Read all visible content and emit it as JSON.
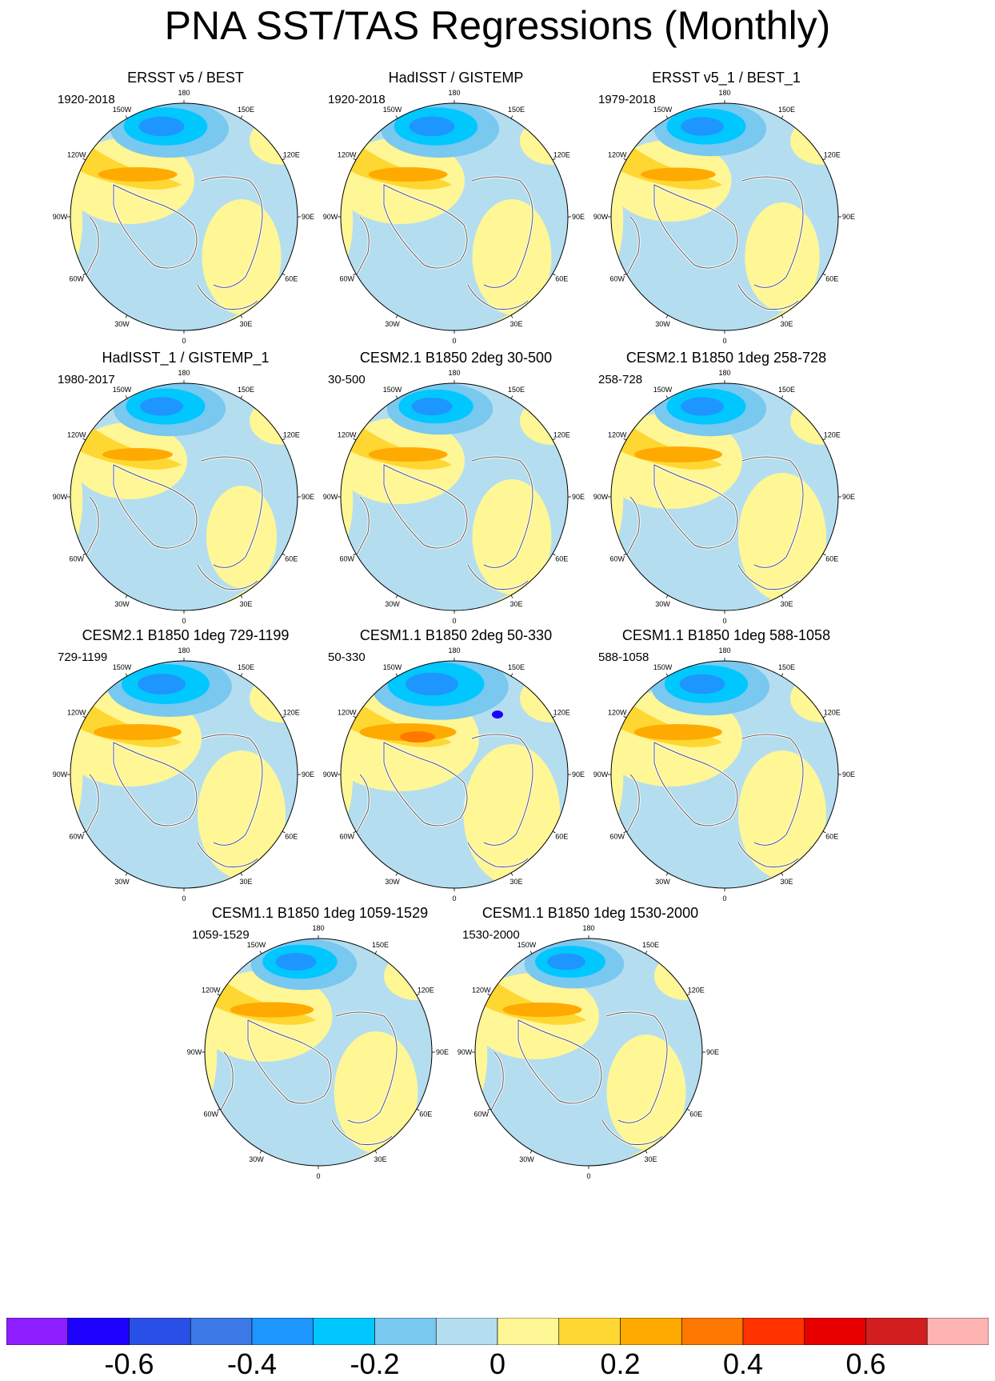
{
  "title": "PNA SST/TAS Regressions (Monthly)",
  "colors": {
    "coastline": "#555555",
    "ice_edge": "#ffffff"
  },
  "chart_data": {
    "type": "heatmap",
    "projection": "polar stereographic (Northern Hemisphere)",
    "longitude_labels": [
      "180",
      "150E",
      "120E",
      "90E",
      "60E",
      "30E",
      "0",
      "30W",
      "60W",
      "90W",
      "120W",
      "150W"
    ],
    "panels": [
      {
        "title": "ERSST v5 / BEST",
        "period": "1920-2018",
        "pattern": {
          "neg": 0.95,
          "pos": 0.9,
          "deep": false,
          "red": false
        }
      },
      {
        "title": "HadISST / GISTEMP",
        "period": "1920-2018",
        "pattern": {
          "neg": 0.95,
          "pos": 0.9,
          "deep": false,
          "red": false
        }
      },
      {
        "title": "ERSST v5_1 / BEST_1",
        "period": "1979-2018",
        "pattern": {
          "neg": 0.9,
          "pos": 0.85,
          "deep": false,
          "red": false
        }
      },
      {
        "title": "HadISST_1 / GISTEMP_1",
        "period": "1980-2017",
        "pattern": {
          "neg": 0.9,
          "pos": 0.8,
          "deep": false,
          "red": false
        }
      },
      {
        "title": "CESM2.1 B1850 2deg 30-500",
        "period": "30-500",
        "pattern": {
          "neg": 0.85,
          "pos": 0.9,
          "deep": false,
          "red": false
        }
      },
      {
        "title": "CESM2.1 B1850 1deg 258-728",
        "period": "258-728",
        "pattern": {
          "neg": 0.9,
          "pos": 1.0,
          "deep": false,
          "red": false
        }
      },
      {
        "title": "CESM2.1 B1850 1deg 729-1199",
        "period": "729-1199",
        "pattern": {
          "neg": 1.0,
          "pos": 1.0,
          "deep": false,
          "red": false
        }
      },
      {
        "title": "CESM1.1 B1850 2deg 50-330",
        "period": "50-330",
        "pattern": {
          "neg": 1.1,
          "pos": 1.1,
          "deep": true,
          "red": true
        }
      },
      {
        "title": "CESM1.1 B1850 1deg 588-1058",
        "period": "588-1058",
        "pattern": {
          "neg": 0.95,
          "pos": 1.0,
          "deep": false,
          "red": false
        }
      },
      {
        "title": "CESM1.1 B1850 1deg 1059-1529",
        "period": "1059-1529",
        "pattern": {
          "neg": 0.85,
          "pos": 0.95,
          "deep": false,
          "red": false
        }
      },
      {
        "title": "CESM1.1 B1850 1deg 1530-2000",
        "period": "1530-2000",
        "pattern": {
          "neg": 0.8,
          "pos": 0.9,
          "deep": false,
          "red": false
        }
      }
    ],
    "colorbar": {
      "colors": [
        "#8c1eff",
        "#1e00ff",
        "#2850e6",
        "#3c78e6",
        "#1e96ff",
        "#00c8ff",
        "#78c8f0",
        "#b4def0",
        "#fff696",
        "#ffd732",
        "#ffaa00",
        "#ff7800",
        "#ff3200",
        "#e60000",
        "#d21e1e",
        "#ffb4b4"
      ],
      "ticks": [
        "-0.6",
        "-0.4",
        "-0.2",
        "0",
        "0.2",
        "0.4",
        "0.6"
      ],
      "range": [
        -0.8,
        0.8
      ],
      "interval": 0.1
    },
    "legend": "bottom"
  }
}
